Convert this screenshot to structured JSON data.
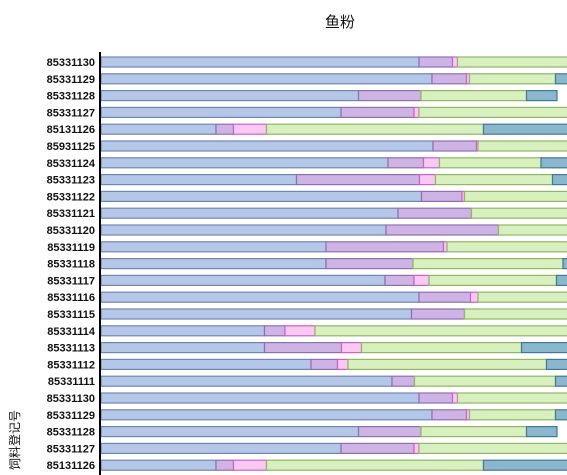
{
  "chart_data": {
    "type": "bar",
    "stacked": true,
    "orientation": "horizontal",
    "title": "鱼粉",
    "ylabel": "饲料登记号",
    "xlabel": "",
    "grid": false,
    "legend": "none",
    "xlim": [
      0,
      100
    ],
    "colors": {
      "s1": "#b4c7e7",
      "s1_stroke": "#7086b8",
      "s2": "#cdb4e4",
      "s2_stroke": "#8f6fb3",
      "s3": "#f9c9f2",
      "s3_stroke": "#cf5fcf",
      "s4": "#d8efbf",
      "s4_stroke": "#8fb860",
      "s5": "#8ab7cc",
      "s5_stroke": "#3f7a96"
    },
    "categories": [
      "85331130",
      "85331129",
      "85331128",
      "85331127",
      "85131126",
      "85931125",
      "85331124",
      "85331123",
      "85331122",
      "85331121",
      "85331120",
      "85331119",
      "85331118",
      "85331117",
      "85331116",
      "85331115",
      "85331114",
      "85331113",
      "85331112",
      "85331111",
      "85331130",
      "85331129",
      "85331128",
      "85331127",
      "85131126"
    ],
    "series": [
      {
        "values": [
          63.6,
          66.2,
          51.5,
          48.0,
          23.0,
          66.4,
          57.4,
          39.1,
          64.1,
          59.4,
          57.0,
          45.0,
          45.0,
          56.8,
          63.6,
          62.1,
          32.7,
          32.7,
          42.0,
          58.2,
          63.6,
          66.2,
          51.5,
          48.0,
          23.0
        ]
      },
      {
        "values": [
          6.7,
          6.9,
          12.5,
          14.6,
          3.5,
          8.7,
          7.1,
          24.6,
          8.1,
          14.7,
          22.5,
          23.5,
          17.4,
          5.8,
          10.3,
          10.6,
          4.1,
          15.4,
          5.3,
          4.5,
          6.7,
          6.9,
          12.5,
          14.6,
          3.5
        ]
      },
      {
        "values": [
          1.0,
          0.6,
          0.0,
          1.0,
          6.6,
          0.3,
          3.2,
          3.2,
          0.5,
          0.0,
          0.0,
          0.7,
          0.0,
          3.0,
          1.5,
          0.0,
          6.0,
          4.0,
          2.1,
          0.0,
          1.0,
          0.6,
          0.0,
          1.0,
          6.6
        ]
      },
      {
        "values": [
          22.1,
          17.2,
          21.1,
          31.5,
          43.4,
          18.5,
          20.3,
          23.4,
          22.0,
          24.0,
          14.5,
          28.3,
          30.0,
          25.5,
          20.4,
          23.1,
          52.3,
          32.0,
          39.7,
          28.2,
          22.1,
          17.2,
          21.1,
          31.5,
          43.4
        ]
      },
      {
        "values": [
          1.0,
          4.4,
          6.1,
          3.5,
          21.0,
          1.0,
          8.0,
          7.7,
          1.4,
          3.0,
          0.0,
          2.1,
          9.2,
          10.0,
          3.3,
          4.3,
          5.6,
          11.1,
          10.9,
          4.5,
          1.0,
          4.4,
          6.1,
          3.5,
          21.0
        ]
      }
    ]
  }
}
